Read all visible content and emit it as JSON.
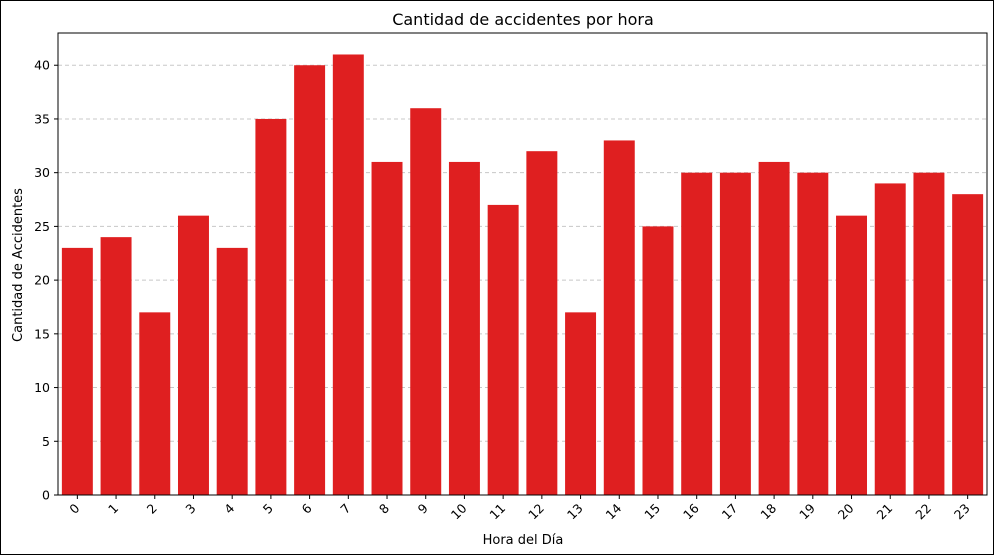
{
  "chart_data": {
    "type": "bar",
    "title": "Cantidad de accidentes por hora",
    "xlabel": "Hora del Día",
    "ylabel": "Cantidad de Accidentes",
    "categories": [
      "0",
      "1",
      "2",
      "3",
      "4",
      "5",
      "6",
      "7",
      "8",
      "9",
      "10",
      "11",
      "12",
      "13",
      "14",
      "15",
      "16",
      "17",
      "18",
      "19",
      "20",
      "21",
      "22",
      "23"
    ],
    "values": [
      23,
      24,
      17,
      26,
      23,
      35,
      40,
      41,
      31,
      36,
      31,
      27,
      32,
      17,
      33,
      25,
      30,
      30,
      31,
      30,
      26,
      29,
      30,
      28
    ],
    "ylim": [
      0,
      43
    ],
    "yticks": [
      0,
      5,
      10,
      15,
      20,
      25,
      30,
      35,
      40
    ],
    "grid": "y-dashed",
    "legend": "none",
    "bar_color": "#df1f20",
    "grid_color": "#c8c8c8"
  }
}
